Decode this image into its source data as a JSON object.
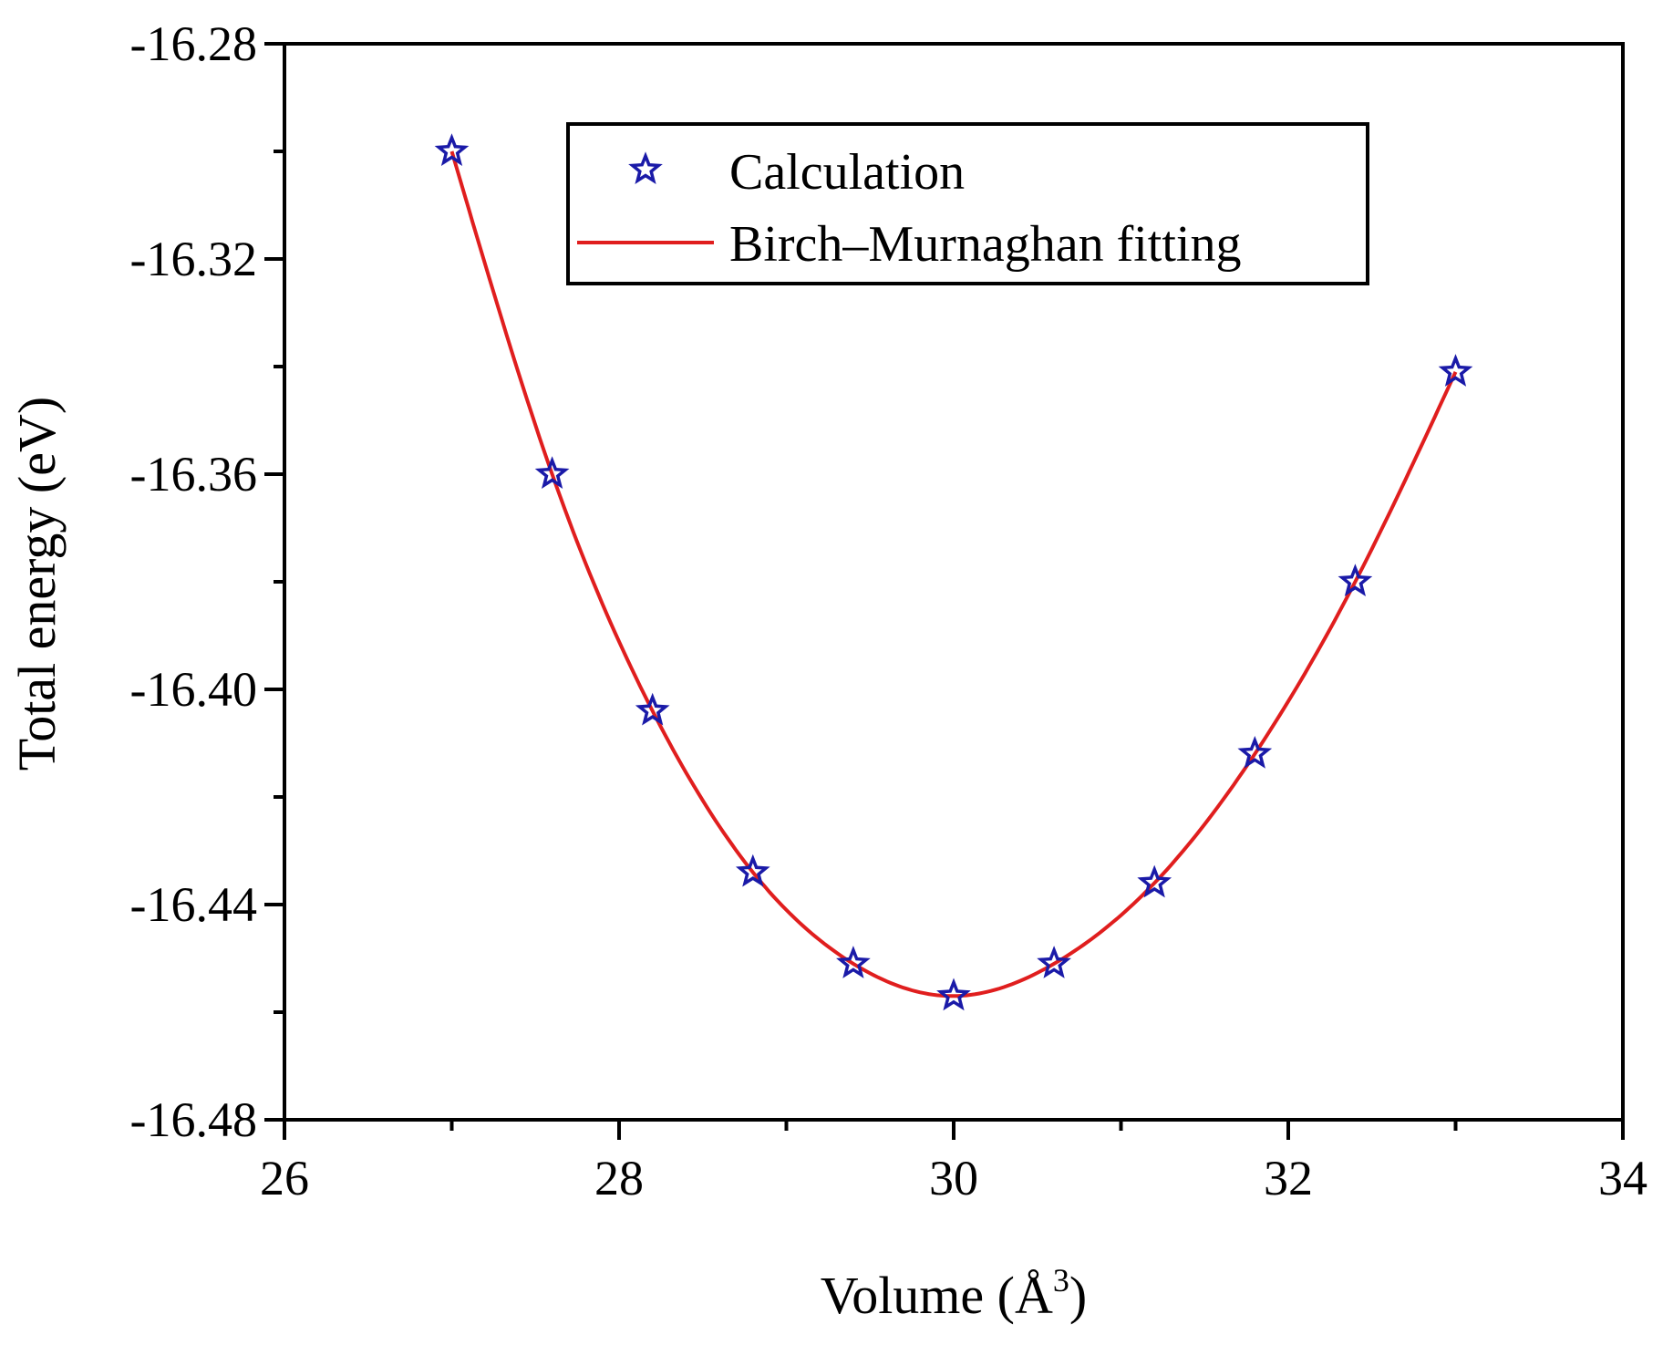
{
  "chart_data": {
    "type": "scatter",
    "title": "",
    "xlabel": "Volume (Å",
    "xlabel_superscript": "3",
    "xlabel_suffix": ")",
    "ylabel": "Total energy (eV)",
    "xlim": [
      26,
      34
    ],
    "ylim": [
      -16.48,
      -16.28
    ],
    "x_ticks": [
      26,
      28,
      30,
      32,
      34
    ],
    "x_tick_labels": [
      "26",
      "28",
      "30",
      "32",
      "34"
    ],
    "y_ticks": [
      -16.28,
      -16.32,
      -16.36,
      -16.4,
      -16.44,
      -16.48
    ],
    "y_tick_labels": [
      "-16.28",
      "-16.32",
      "-16.36",
      "-16.40",
      "-16.44",
      "-16.48"
    ],
    "legend_position": "top-right",
    "series": [
      {
        "name": "Calculation",
        "kind": "scatter",
        "marker": "star",
        "color": "#1a1aa8",
        "x": [
          27.0,
          27.6,
          28.2,
          28.8,
          29.4,
          30.0,
          30.6,
          31.2,
          31.8,
          32.4,
          33.0
        ],
        "y": [
          -16.3,
          -16.36,
          -16.404,
          -16.434,
          -16.451,
          -16.457,
          -16.451,
          -16.436,
          -16.412,
          -16.38,
          -16.341
        ]
      },
      {
        "name": "Birch–Murnaghan fitting",
        "kind": "line",
        "color": "#e01e1e",
        "x": [
          27.0,
          27.6,
          28.2,
          28.8,
          29.4,
          30.0,
          30.6,
          31.2,
          31.8,
          32.4,
          33.0
        ],
        "y": [
          -16.3,
          -16.36,
          -16.404,
          -16.434,
          -16.451,
          -16.457,
          -16.451,
          -16.436,
          -16.412,
          -16.38,
          -16.341
        ]
      }
    ]
  }
}
